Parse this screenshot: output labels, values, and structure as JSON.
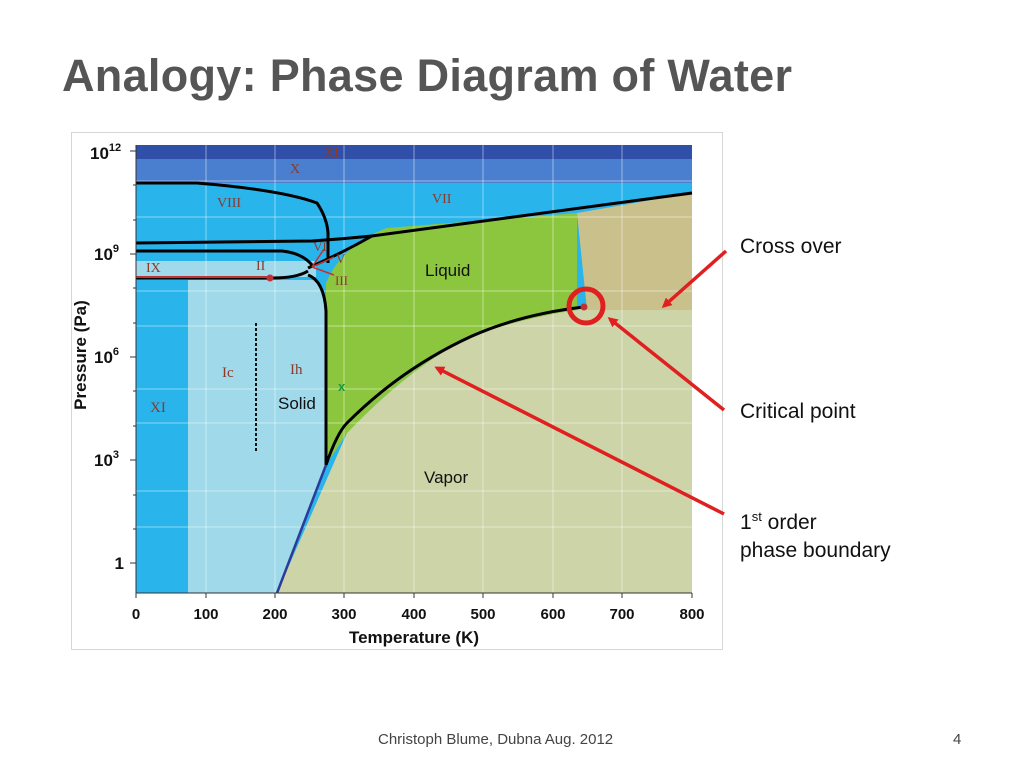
{
  "slide": {
    "title": "Analogy: Phase Diagram of Water",
    "footer": "Christoph Blume, Dubna Aug. 2012",
    "page_number": "4"
  },
  "diagram": {
    "y_axis_label": "Pressure (Pa)",
    "x_axis_label": "Temperature (K)",
    "y_ticks": [
      {
        "base": "1",
        "exp": ""
      },
      {
        "base": "10",
        "exp": "3"
      },
      {
        "base": "10",
        "exp": "6"
      },
      {
        "base": "10",
        "exp": "9"
      },
      {
        "base": "10",
        "exp": "12"
      }
    ],
    "x_ticks": [
      "0",
      "100",
      "200",
      "300",
      "400",
      "500",
      "600",
      "700",
      "800"
    ],
    "phases": {
      "xi_top": "XI",
      "x": "X",
      "viii": "VIII",
      "vii": "VII",
      "vi": "VI",
      "v": "V",
      "ix": "IX",
      "ii": "II",
      "iii": "III",
      "ic": "Ic",
      "ih": "Ih",
      "xi_left": "XI",
      "solid": "Solid",
      "liquid": "Liquid",
      "vapor": "Vapor",
      "x_mark": "x"
    },
    "colors": {
      "deep_blue": "#2f4fa8",
      "medium_blue": "#3e72c8",
      "sky_blue": "#2ab4ec",
      "light_blue": "#9fd9ea",
      "liquid_green": "#8cc63f",
      "vapor_tan": "#cdd4a8",
      "crossover_tan": "#c9c08c",
      "arrow_red": "#e02020"
    }
  },
  "annotations": {
    "cross_over": "Cross over",
    "critical_point": "Critical point",
    "first_order_prefix": "1",
    "first_order_sup": "st",
    "first_order_suffix": " order",
    "phase_boundary": "phase boundary"
  }
}
